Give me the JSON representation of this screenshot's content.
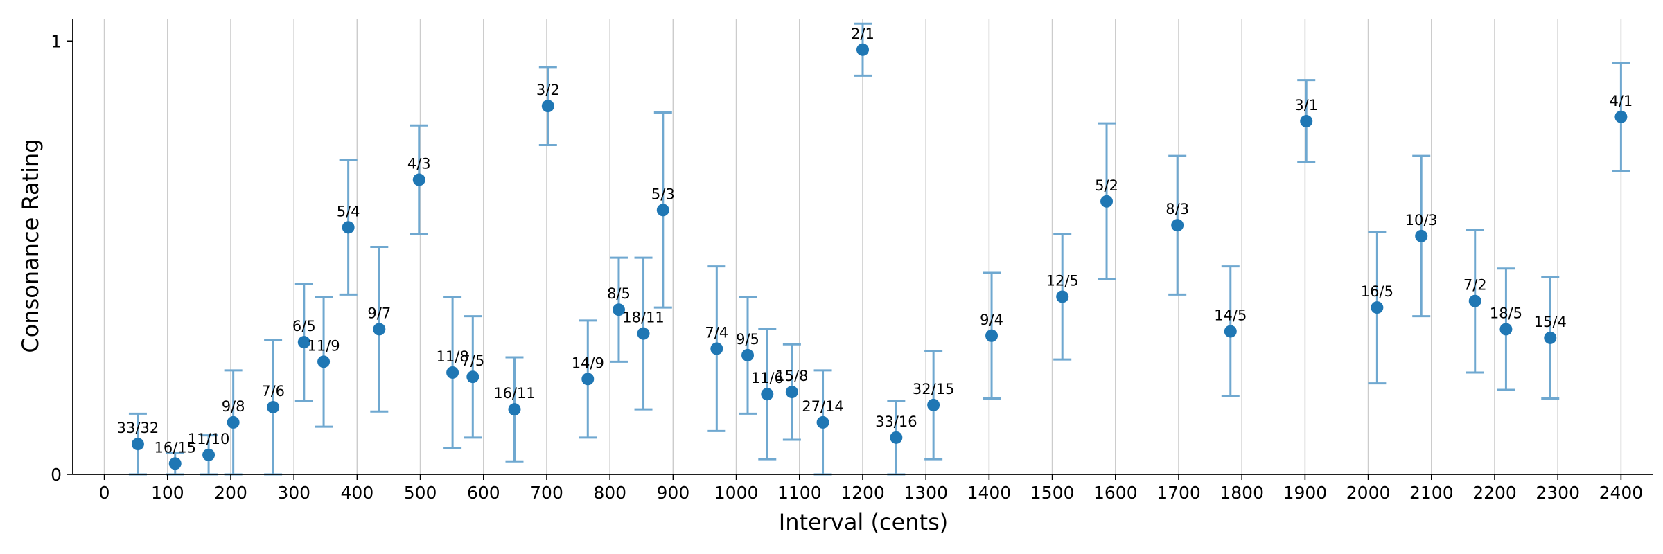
{
  "chart_data": {
    "type": "scatter",
    "xlabel": "Interval (cents)",
    "ylabel": "Consonance Rating",
    "xlim": [
      -50,
      2450
    ],
    "ylim": [
      0,
      1.05
    ],
    "x_ticks": [
      0,
      100,
      200,
      300,
      400,
      500,
      600,
      700,
      800,
      900,
      1000,
      1100,
      1200,
      1300,
      1400,
      1500,
      1600,
      1700,
      1800,
      1900,
      2000,
      2100,
      2200,
      2300,
      2400
    ],
    "y_ticks": [
      0,
      1
    ],
    "vertical_gridlines": true,
    "marker_color": "#1f77b4",
    "errorbar_color": "#6fa8d0",
    "grid_color": "#cccccc",
    "points": [
      {
        "label": "33/32",
        "x": 53,
        "y": 0.07,
        "err_low": 0.07,
        "err_high": 0.07
      },
      {
        "label": "16/15",
        "x": 112,
        "y": 0.025,
        "err_low": 0.025,
        "err_high": 0.025
      },
      {
        "label": "11/10",
        "x": 165,
        "y": 0.045,
        "err_low": 0.045,
        "err_high": 0.045
      },
      {
        "label": "9/8",
        "x": 204,
        "y": 0.12,
        "err_low": 0.12,
        "err_high": 0.12
      },
      {
        "label": "7/6",
        "x": 267,
        "y": 0.155,
        "err_low": 0.155,
        "err_high": 0.155
      },
      {
        "label": "6/5",
        "x": 316,
        "y": 0.305,
        "err_low": 0.135,
        "err_high": 0.135
      },
      {
        "label": "11/9",
        "x": 347,
        "y": 0.26,
        "err_low": 0.15,
        "err_high": 0.15
      },
      {
        "label": "5/4",
        "x": 386,
        "y": 0.57,
        "err_low": 0.155,
        "err_high": 0.155
      },
      {
        "label": "9/7",
        "x": 435,
        "y": 0.335,
        "err_low": 0.19,
        "err_high": 0.19
      },
      {
        "label": "4/3",
        "x": 498,
        "y": 0.68,
        "err_low": 0.125,
        "err_high": 0.125
      },
      {
        "label": "11/8",
        "x": 551,
        "y": 0.235,
        "err_low": 0.175,
        "err_high": 0.175
      },
      {
        "label": "7/5",
        "x": 583,
        "y": 0.225,
        "err_low": 0.14,
        "err_high": 0.14
      },
      {
        "label": "16/11",
        "x": 649,
        "y": 0.15,
        "err_low": 0.12,
        "err_high": 0.12
      },
      {
        "label": "3/2",
        "x": 702,
        "y": 0.85,
        "err_low": 0.09,
        "err_high": 0.09
      },
      {
        "label": "14/9",
        "x": 765,
        "y": 0.22,
        "err_low": 0.135,
        "err_high": 0.135
      },
      {
        "label": "8/5",
        "x": 814,
        "y": 0.38,
        "err_low": 0.12,
        "err_high": 0.12
      },
      {
        "label": "18/11",
        "x": 853,
        "y": 0.325,
        "err_low": 0.175,
        "err_high": 0.175
      },
      {
        "label": "5/3",
        "x": 884,
        "y": 0.61,
        "err_low": 0.225,
        "err_high": 0.225
      },
      {
        "label": "7/4",
        "x": 969,
        "y": 0.29,
        "err_low": 0.19,
        "err_high": 0.19
      },
      {
        "label": "9/5",
        "x": 1018,
        "y": 0.275,
        "err_low": 0.135,
        "err_high": 0.135
      },
      {
        "label": "11/6",
        "x": 1049,
        "y": 0.185,
        "err_low": 0.15,
        "err_high": 0.15
      },
      {
        "label": "15/8",
        "x": 1088,
        "y": 0.19,
        "err_low": 0.11,
        "err_high": 0.11
      },
      {
        "label": "27/14",
        "x": 1137,
        "y": 0.12,
        "err_low": 0.12,
        "err_high": 0.12
      },
      {
        "label": "2/1",
        "x": 1200,
        "y": 0.98,
        "err_low": 0.06,
        "err_high": 0.06
      },
      {
        "label": "33/16",
        "x": 1253,
        "y": 0.085,
        "err_low": 0.085,
        "err_high": 0.085
      },
      {
        "label": "32/15",
        "x": 1312,
        "y": 0.16,
        "err_low": 0.125,
        "err_high": 0.125
      },
      {
        "label": "9/4",
        "x": 1404,
        "y": 0.32,
        "err_low": 0.145,
        "err_high": 0.145
      },
      {
        "label": "12/5",
        "x": 1516,
        "y": 0.41,
        "err_low": 0.145,
        "err_high": 0.145
      },
      {
        "label": "5/2",
        "x": 1586,
        "y": 0.63,
        "err_low": 0.18,
        "err_high": 0.18
      },
      {
        "label": "8/3",
        "x": 1698,
        "y": 0.575,
        "err_low": 0.16,
        "err_high": 0.16
      },
      {
        "label": "14/5",
        "x": 1782,
        "y": 0.33,
        "err_low": 0.15,
        "err_high": 0.15
      },
      {
        "label": "3/1",
        "x": 1902,
        "y": 0.815,
        "err_low": 0.095,
        "err_high": 0.095
      },
      {
        "label": "16/5",
        "x": 2014,
        "y": 0.385,
        "err_low": 0.175,
        "err_high": 0.175
      },
      {
        "label": "10/3",
        "x": 2084,
        "y": 0.55,
        "err_low": 0.185,
        "err_high": 0.185
      },
      {
        "label": "7/2",
        "x": 2169,
        "y": 0.4,
        "err_low": 0.165,
        "err_high": 0.165
      },
      {
        "label": "18/5",
        "x": 2218,
        "y": 0.335,
        "err_low": 0.14,
        "err_high": 0.14
      },
      {
        "label": "15/4",
        "x": 2288,
        "y": 0.315,
        "err_low": 0.14,
        "err_high": 0.14
      },
      {
        "label": "4/1",
        "x": 2400,
        "y": 0.825,
        "err_low": 0.125,
        "err_high": 0.125
      }
    ]
  }
}
